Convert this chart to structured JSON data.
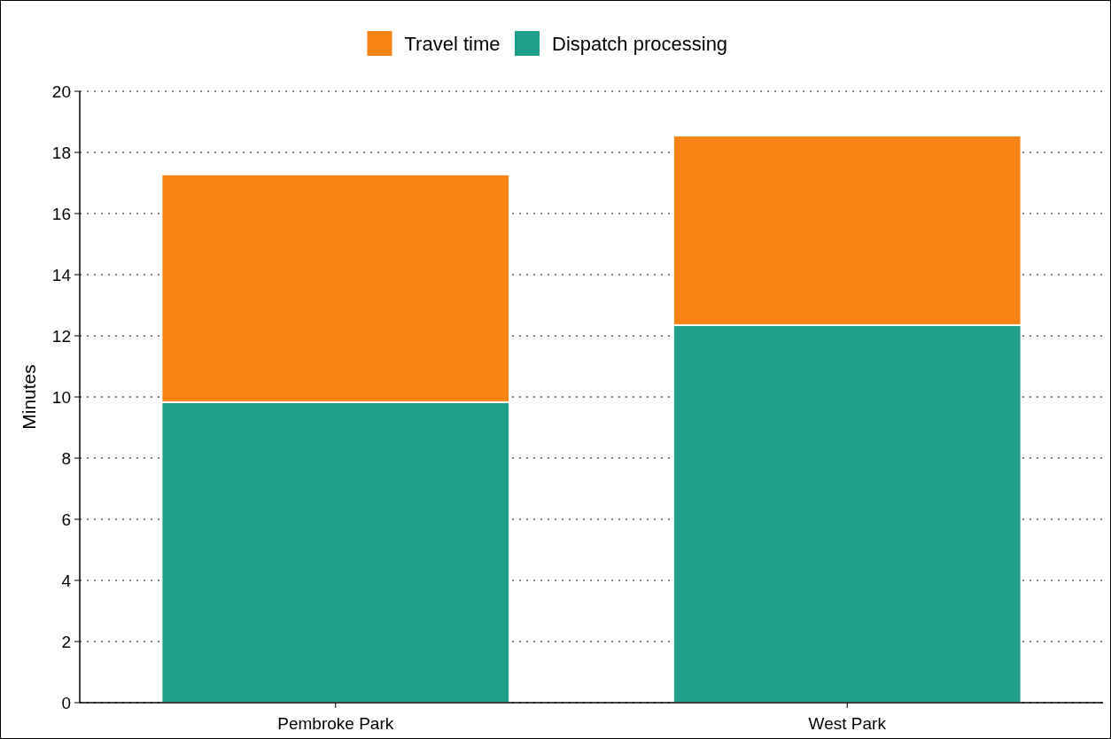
{
  "chart_data": {
    "type": "bar",
    "stacked": true,
    "ylabel": "Minutes",
    "categories": [
      "Pembroke Park",
      "West Park"
    ],
    "series": [
      {
        "name": "Dispatch processing",
        "color": "#20a08a",
        "values": [
          9.83,
          12.35
        ]
      },
      {
        "name": "Travel time",
        "color": "#f78415",
        "values": [
          7.45,
          6.2
        ]
      }
    ],
    "ylim": [
      0,
      20
    ],
    "yticks": [
      0,
      2,
      4,
      6,
      8,
      10,
      12,
      14,
      16,
      18,
      20
    ],
    "grid": "y",
    "legend": "top"
  }
}
